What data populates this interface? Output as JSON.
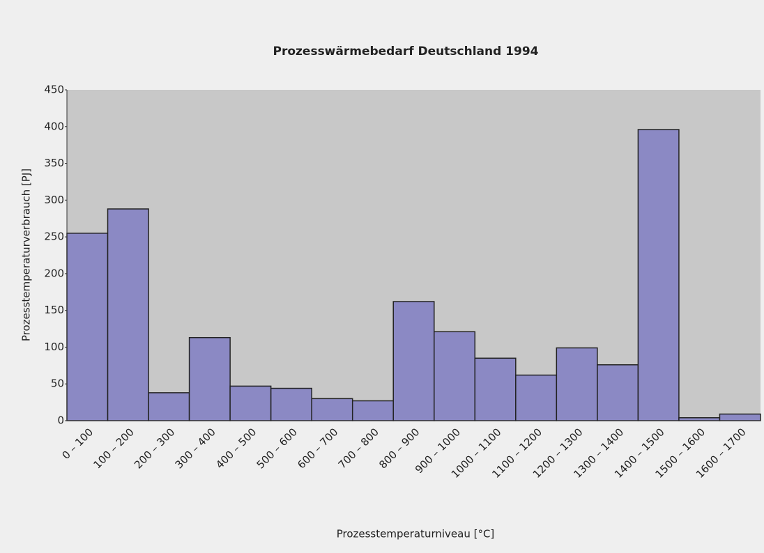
{
  "chart_data": {
    "type": "bar",
    "title": "Prozesswärmebedarf Deutschland 1994",
    "xlabel": "Prozesstemperaturniveau [°C]",
    "ylabel": "Prozesstemperaturverbrauch [PJ]",
    "categories": [
      "0 – 100",
      "100 – 200",
      "200 – 300",
      "300 – 400",
      "400 – 500",
      "500 – 600",
      "600 – 700",
      "700 – 800",
      "800 – 900",
      "900 – 1000",
      "1000 – 1100",
      "1100 – 1200",
      "1200 – 1300",
      "1300 – 1400",
      "1400 – 1500",
      "1500 – 1600",
      "1600 – 1700"
    ],
    "values": [
      255,
      288,
      38,
      113,
      47,
      44,
      30,
      27,
      162,
      121,
      85,
      62,
      99,
      76,
      396,
      4,
      9
    ],
    "color": "#8b89c4",
    "ylim": [
      0,
      450
    ],
    "yticks": [
      0,
      50,
      100,
      150,
      200,
      250,
      300,
      350,
      400,
      450
    ],
    "grid": false
  }
}
